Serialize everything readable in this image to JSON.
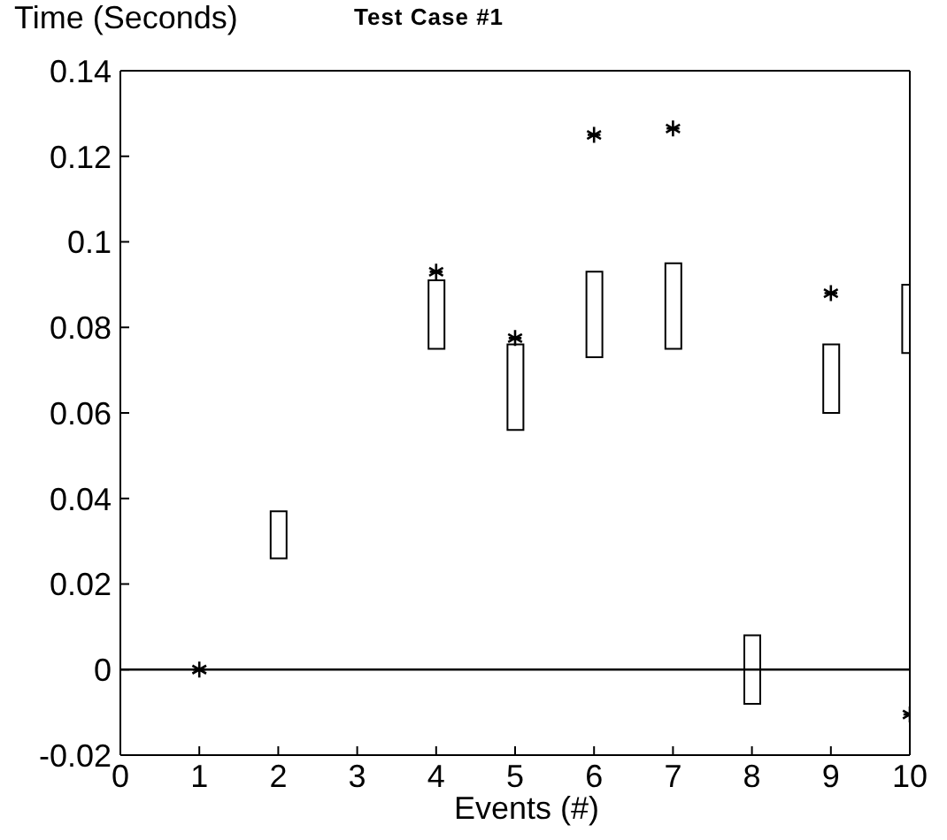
{
  "chart_data": {
    "type": "bar",
    "title": "Test Case #1",
    "xlabel": "Events (#)",
    "ylabel": "Time (Seconds)",
    "x": [
      1,
      2,
      3,
      4,
      5,
      6,
      7,
      8,
      9,
      10
    ],
    "series": [
      {
        "color": "#ffffff",
        "base": [
          null,
          0.026,
          null,
          0.075,
          0.056,
          0.073,
          0.075,
          -0.008,
          0.06,
          0.074
        ],
        "values": [
          null,
          0.011,
          null,
          0.016,
          0.02,
          0.02,
          0.02,
          0.016,
          0.016,
          0.016
        ]
      },
      {
        "type": "scatter",
        "color": "#000000",
        "marker": "cross",
        "values": [
          0,
          null,
          null,
          0.093,
          0.0775,
          0.125,
          0.1265,
          null,
          0.088,
          -0.0105
        ]
      }
    ],
    "xlim": [
      0,
      10
    ],
    "xticks": [
      0,
      1,
      2,
      3,
      4,
      5,
      6,
      7,
      8,
      9,
      10
    ],
    "ylim": [
      -0.02,
      0.14
    ],
    "yticks": [
      -0.02,
      0,
      0.02,
      0.04,
      0.06,
      0.08,
      0.1,
      0.12,
      0.14
    ],
    "ref_lines": [
      {
        "axis": "y",
        "value": 0,
        "color": "#000000"
      }
    ],
    "grid": false,
    "legend": false
  }
}
